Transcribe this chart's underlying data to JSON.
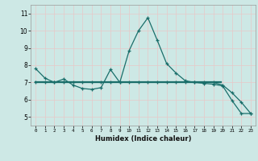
{
  "xlabel": "Humidex (Indice chaleur)",
  "bg_color": "#cde8e5",
  "grid_color": "#e8c8c8",
  "line_color": "#1a6e6a",
  "xlim": [
    -0.5,
    23.5
  ],
  "ylim": [
    4.5,
    11.5
  ],
  "x_ticks": [
    0,
    1,
    2,
    3,
    4,
    5,
    6,
    7,
    8,
    9,
    10,
    11,
    12,
    13,
    14,
    15,
    16,
    17,
    18,
    19,
    20,
    21,
    22,
    23
  ],
  "yticks": [
    5,
    6,
    7,
    8,
    9,
    10,
    11
  ],
  "curve1_x": [
    0,
    1,
    2,
    3,
    4,
    5,
    6,
    7,
    8,
    9,
    10,
    11,
    12,
    13,
    14,
    15,
    16,
    17,
    18,
    19,
    20,
    21,
    22,
    23
  ],
  "curve1_y": [
    7.8,
    7.25,
    7.0,
    7.2,
    6.85,
    6.65,
    6.6,
    6.7,
    7.75,
    7.0,
    8.85,
    10.0,
    10.75,
    9.45,
    8.1,
    7.55,
    7.1,
    7.0,
    6.95,
    6.9,
    6.8,
    5.95,
    5.2,
    5.2
  ],
  "curve2_x": [
    0,
    1,
    2,
    3,
    4,
    5,
    6,
    7,
    8,
    9,
    10,
    11,
    12,
    13,
    14,
    15,
    16,
    17,
    18,
    19,
    20,
    21,
    22,
    23
  ],
  "curve2_y": [
    7.0,
    7.0,
    7.0,
    7.0,
    7.0,
    7.0,
    7.0,
    7.0,
    7.0,
    7.0,
    7.0,
    7.0,
    7.0,
    7.0,
    7.0,
    7.0,
    7.0,
    7.0,
    7.0,
    7.0,
    6.85,
    6.4,
    5.85,
    5.2
  ],
  "hline_x": [
    0,
    19.8
  ],
  "hline_y": [
    7.0,
    7.0
  ]
}
